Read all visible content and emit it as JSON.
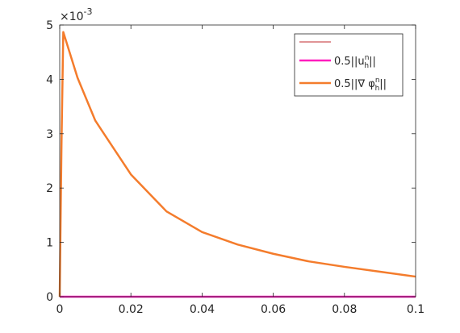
{
  "chart_data": {
    "type": "line",
    "title": "",
    "xlabel": "",
    "ylabel": "",
    "y_multiplier_text": "×10",
    "y_multiplier_exponent": "-3",
    "xlim": [
      0,
      0.1
    ],
    "ylim": [
      0,
      0.005
    ],
    "xticks": [
      0,
      0.02,
      0.04,
      0.06,
      0.08,
      0.1
    ],
    "xtick_labels": [
      "0",
      "0.02",
      "0.04",
      "0.06",
      "0.08",
      "0.1"
    ],
    "yticks": [
      0,
      0.001,
      0.002,
      0.003,
      0.004,
      0.005
    ],
    "ytick_labels": [
      "0",
      "1",
      "2",
      "3",
      "4",
      "5"
    ],
    "grid": false,
    "legend_position": "top-right",
    "legend": [
      {
        "label": "",
        "color": "#C0282D",
        "width": "thin"
      },
      {
        "label": "0.5||u_h^n||",
        "color": "#FF1DBE",
        "width": "thick"
      },
      {
        "label": "0.5||∇ φ_h^n||",
        "color": "#F47C2C",
        "width": "thick"
      }
    ],
    "series": [
      {
        "color": "#FF1DBE",
        "x": [
          0,
          0.1
        ],
        "y": [
          0,
          0
        ]
      },
      {
        "color": "#F47C2C",
        "x": [
          0,
          0.0005,
          0.001,
          0.005,
          0.01,
          0.02,
          0.03,
          0.04,
          0.05,
          0.06,
          0.07,
          0.08,
          0.09,
          0.1
        ],
        "y": [
          0,
          0.0028,
          0.00487,
          0.00403,
          0.00324,
          0.00225,
          0.00157,
          0.00119,
          0.00096,
          0.00079,
          0.00065,
          0.00055,
          0.00046,
          0.00037
        ]
      }
    ]
  }
}
